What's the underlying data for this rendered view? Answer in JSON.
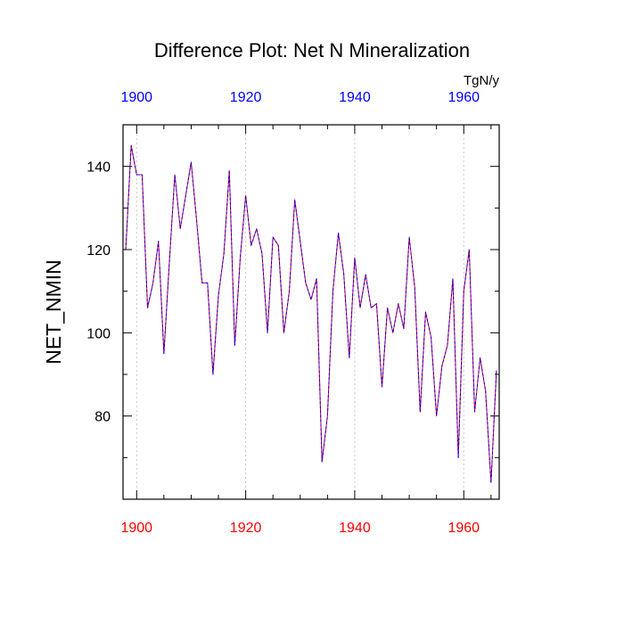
{
  "chart_data": {
    "type": "line",
    "title": "Difference Plot: Net N Mineralization",
    "ylabel": "NET_NMIN",
    "units": "TgN/y",
    "xlim": [
      1897.5,
      1966.5
    ],
    "ylim": [
      60,
      150
    ],
    "xticks": [
      1900,
      1920,
      1940,
      1960
    ],
    "xtick_labels": [
      "1900",
      "1920",
      "1940",
      "1960"
    ],
    "yticks": [
      80,
      100,
      120,
      140
    ],
    "ytick_labels": [
      "80",
      "100",
      "120",
      "140"
    ],
    "grid": "vertical-dotted",
    "series": [
      {
        "name": "series-red",
        "color": "#ff0000",
        "style": "solid",
        "x": [
          1898,
          1899,
          1900,
          1901,
          1902,
          1903,
          1904,
          1905,
          1906,
          1907,
          1908,
          1909,
          1910,
          1911,
          1912,
          1913,
          1914,
          1915,
          1916,
          1917,
          1918,
          1919,
          1920,
          1921,
          1922,
          1923,
          1924,
          1925,
          1926,
          1927,
          1928,
          1929,
          1930,
          1931,
          1932,
          1933,
          1934,
          1935,
          1936,
          1937,
          1938,
          1939,
          1940,
          1941,
          1942,
          1943,
          1944,
          1945,
          1946,
          1947,
          1948,
          1949,
          1950,
          1951,
          1952,
          1953,
          1954,
          1955,
          1956,
          1957,
          1958,
          1959,
          1960,
          1961,
          1962,
          1963,
          1964,
          1965,
          1966
        ],
        "values": [
          120,
          145,
          138,
          138,
          106,
          112,
          122,
          95,
          117,
          138,
          125,
          133,
          141,
          127,
          112,
          112,
          90,
          109,
          119,
          139,
          97,
          118,
          133,
          121,
          125,
          119,
          100,
          123,
          121,
          100,
          110,
          132,
          122,
          112,
          108,
          113,
          69,
          80,
          110,
          124,
          114,
          94,
          118,
          106,
          114,
          106,
          107,
          87,
          106,
          100,
          107,
          101,
          123,
          111,
          81,
          105,
          99,
          80,
          92,
          97,
          113,
          70,
          110,
          120,
          81,
          94,
          86,
          64,
          91
        ],
        "y": [
          120,
          145,
          138,
          138,
          106,
          112,
          122,
          95,
          117,
          138,
          125,
          133,
          141,
          127,
          112,
          112,
          90,
          109,
          119,
          139,
          97,
          118,
          133,
          121,
          125,
          119,
          100,
          123,
          121,
          100,
          110,
          132,
          122,
          112,
          108,
          113,
          69,
          80,
          110,
          124,
          114,
          94,
          118,
          106,
          114,
          106,
          107,
          87,
          106,
          100,
          107,
          101,
          123,
          111,
          81,
          105,
          99,
          80,
          92,
          97,
          113,
          70,
          110,
          120,
          81,
          94,
          86,
          64,
          91
        ]
      },
      {
        "name": "series-blue",
        "color": "#0000ff",
        "style": "dashed",
        "x": [
          1898,
          1899,
          1900,
          1901,
          1902,
          1903,
          1904,
          1905,
          1906,
          1907,
          1908,
          1909,
          1910,
          1911,
          1912,
          1913,
          1914,
          1915,
          1916,
          1917,
          1918,
          1919,
          1920,
          1921,
          1922,
          1923,
          1924,
          1925,
          1926,
          1927,
          1928,
          1929,
          1930,
          1931,
          1932,
          1933,
          1934,
          1935,
          1936,
          1937,
          1938,
          1939,
          1940,
          1941,
          1942,
          1943,
          1944,
          1945,
          1946,
          1947,
          1948,
          1949,
          1950,
          1951,
          1952,
          1953,
          1954,
          1955,
          1956,
          1957,
          1958,
          1959,
          1960,
          1961,
          1962,
          1963,
          1964,
          1965,
          1966
        ],
        "values": [
          120,
          145,
          138,
          138,
          106,
          112,
          122,
          95,
          117,
          138,
          125,
          133,
          141,
          127,
          112,
          112,
          90,
          109,
          119,
          139,
          97,
          118,
          133,
          121,
          125,
          119,
          100,
          123,
          121,
          100,
          110,
          132,
          122,
          112,
          108,
          113,
          69,
          80,
          110,
          124,
          114,
          94,
          118,
          106,
          114,
          106,
          107,
          87,
          106,
          100,
          107,
          101,
          123,
          111,
          81,
          105,
          99,
          80,
          92,
          97,
          113,
          70,
          110,
          120,
          81,
          94,
          86,
          64,
          91
        ],
        "y": [
          120,
          145,
          138,
          138,
          106,
          112,
          122,
          95,
          117,
          138,
          125,
          133,
          141,
          127,
          112,
          112,
          90,
          109,
          119,
          139,
          97,
          118,
          133,
          121,
          125,
          119,
          100,
          123,
          121,
          100,
          110,
          132,
          122,
          112,
          108,
          113,
          69,
          80,
          110,
          124,
          114,
          94,
          118,
          106,
          114,
          106,
          107,
          87,
          106,
          100,
          107,
          101,
          123,
          111,
          81,
          105,
          99,
          80,
          92,
          97,
          113,
          70,
          110,
          120,
          81,
          94,
          86,
          64,
          91
        ]
      }
    ],
    "colors": {
      "bottom_tick_labels": "#ff0000",
      "top_tick_labels": "#0000ff",
      "axis": "#000000",
      "grid": "#bbbbbb"
    }
  }
}
